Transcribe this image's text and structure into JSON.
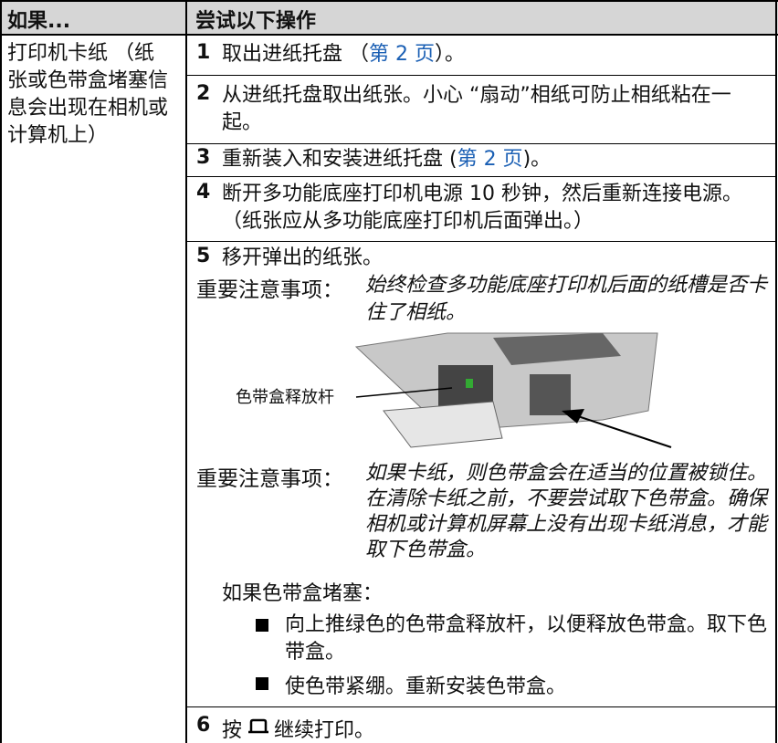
{
  "header": {
    "col1": "如果...",
    "col2": "尝试以下操作"
  },
  "problem": "打印机卡纸 （纸张或色带盒堵塞信息会出现在相机或计算机上）",
  "steps": [
    {
      "number": "1",
      "text": "取出进纸托盘 （",
      "link": "第 2 页",
      "after": "）。"
    },
    {
      "number": "2",
      "text": "从进纸托盘取出纸张。小心 “扇动”相纸可防止相纸粘在一起。"
    },
    {
      "number": "3",
      "text": "重新装入和安装进纸托盘 (",
      "link": "第 2 页",
      "after": ")。"
    },
    {
      "number": "4",
      "text": "断开多功能底座打印机电源 10 秒钟，然后重新连接电源。（纸张应从多功能底座打印机后面弹出。）"
    },
    {
      "number": "5",
      "text": "移开弹出的纸张。"
    }
  ],
  "note1": {
    "label": "重要注意事项：",
    "text": "始终检查多功能底座打印机后面的纸槽是否卡住了相纸。"
  },
  "figure": {
    "callout": "色带盒释放杆"
  },
  "note2": {
    "label": "重要注意事项：",
    "text": "如果卡纸，则色带盒会在适当的位置被锁住。在清除卡纸之前，不要尝试取下色带盒。确保相机或计算机屏幕上没有出现卡纸消息，才能取下色带盒。"
  },
  "jam": {
    "intro": "如果色带盒堵塞：",
    "bullets": [
      "向上推绿色的色带盒释放杆，以便释放色带盒。取下色带盒。",
      "使色带紧绷。重新安装色带盒。"
    ]
  },
  "final": {
    "number": "6",
    "before": "按",
    "after": "继续打印。"
  }
}
